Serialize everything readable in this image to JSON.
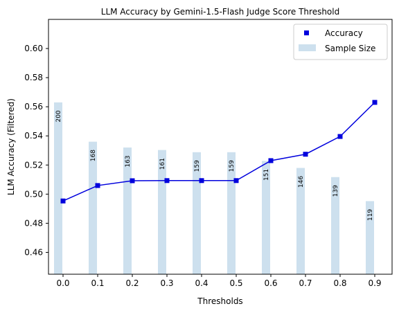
{
  "chart_data": {
    "type": "bar+line",
    "title": "LLM Accuracy by Gemini-1.5-Flash Judge Score Threshold",
    "xlabel": "Thresholds",
    "ylabel": "LLM Accuracy (Filtered)",
    "ylim": [
      0.445,
      0.62
    ],
    "yticks": [
      "0.46",
      "0.48",
      "0.50",
      "0.52",
      "0.54",
      "0.56",
      "0.58",
      "0.60"
    ],
    "categories": [
      "0.0",
      "0.1",
      "0.2",
      "0.3",
      "0.4",
      "0.5",
      "0.6",
      "0.7",
      "0.8",
      "0.9"
    ],
    "accuracy": {
      "name": "Accuracy",
      "values": [
        0.4953,
        0.5059,
        0.5092,
        0.5093,
        0.5093,
        0.5093,
        0.523,
        0.5274,
        0.5396,
        0.563
      ],
      "color": "#0000dd"
    },
    "sample_size": {
      "name": "Sample Size",
      "values": [
        200,
        168,
        163,
        161,
        159,
        159,
        151,
        146,
        139,
        119
      ],
      "bar_tops": [
        0.563,
        0.536,
        0.532,
        0.5303,
        0.5288,
        0.5288,
        0.5228,
        0.518,
        0.5117,
        0.4952
      ],
      "color": "#cde0ee"
    },
    "grid": false,
    "legend_position": "top-right"
  }
}
